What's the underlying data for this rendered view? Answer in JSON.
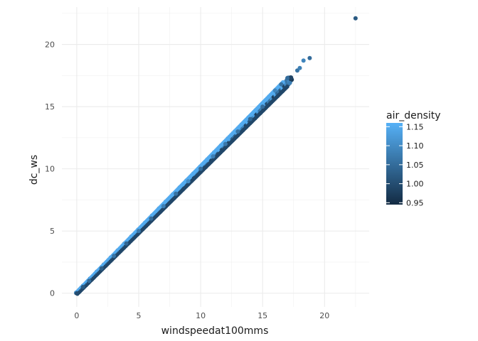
{
  "chart_data": {
    "type": "scatter",
    "title": "",
    "xlabel": "windspeedat100mms",
    "ylabel": "dc_ws",
    "xlim": [
      -1.2,
      23.6
    ],
    "ylim": [
      -1.1,
      23.0
    ],
    "x_ticks": [
      0,
      5,
      10,
      15,
      20
    ],
    "x_tick_labels": [
      "0",
      "5",
      "10",
      "15",
      "20"
    ],
    "y_ticks": [
      0,
      5,
      10,
      15,
      20
    ],
    "y_tick_labels": [
      "0",
      "5",
      "10",
      "15",
      "20"
    ],
    "grid": true,
    "legend": {
      "title": "air_density",
      "type": "colorbar",
      "position": "right",
      "range": [
        0.945,
        1.16
      ],
      "ticks": [
        0.95,
        1.0,
        1.05,
        1.1,
        1.15
      ],
      "tick_labels": [
        "0.95",
        "1.00",
        "1.05",
        "1.10",
        "1.15"
      ],
      "low_color": "#132B43",
      "high_color": "#56B1F7"
    },
    "series": [
      {
        "color_by": "air_density",
        "points": [
          {
            "x": 0.0,
            "y": 0.0,
            "c": 1.0
          },
          {
            "x": 0.5,
            "y": 0.5,
            "c": 1.02
          },
          {
            "x": 1.0,
            "y": 1.0,
            "c": 1.05
          },
          {
            "x": 2.0,
            "y": 2.0,
            "c": 1.03
          },
          {
            "x": 3.0,
            "y": 3.0,
            "c": 1.06
          },
          {
            "x": 4.0,
            "y": 4.0,
            "c": 1.04
          },
          {
            "x": 5.0,
            "y": 5.0,
            "c": 1.07
          },
          {
            "x": 6.0,
            "y": 6.0,
            "c": 1.05
          },
          {
            "x": 7.0,
            "y": 7.0,
            "c": 1.08
          },
          {
            "x": 8.0,
            "y": 8.0,
            "c": 1.06
          },
          {
            "x": 9.0,
            "y": 9.0,
            "c": 1.1
          },
          {
            "x": 10.0,
            "y": 10.0,
            "c": 1.05
          },
          {
            "x": 11.0,
            "y": 11.0,
            "c": 1.08
          },
          {
            "x": 12.0,
            "y": 12.0,
            "c": 1.07
          },
          {
            "x": 13.0,
            "y": 13.0,
            "c": 1.06
          },
          {
            "x": 14.0,
            "y": 14.0,
            "c": 1.04
          },
          {
            "x": 15.0,
            "y": 15.0,
            "c": 1.05
          },
          {
            "x": 16.0,
            "y": 16.3,
            "c": 1.09
          },
          {
            "x": 16.5,
            "y": 16.8,
            "c": 1.06
          },
          {
            "x": 17.0,
            "y": 17.3,
            "c": 1.05
          },
          {
            "x": 17.2,
            "y": 16.9,
            "c": 1.08
          },
          {
            "x": 17.8,
            "y": 17.9,
            "c": 1.06
          },
          {
            "x": 18.0,
            "y": 18.1,
            "c": 1.08
          },
          {
            "x": 18.3,
            "y": 18.7,
            "c": 1.09
          },
          {
            "x": 18.8,
            "y": 18.9,
            "c": 1.05
          },
          {
            "x": 22.5,
            "y": 22.1,
            "c": 1.02
          }
        ]
      }
    ]
  }
}
